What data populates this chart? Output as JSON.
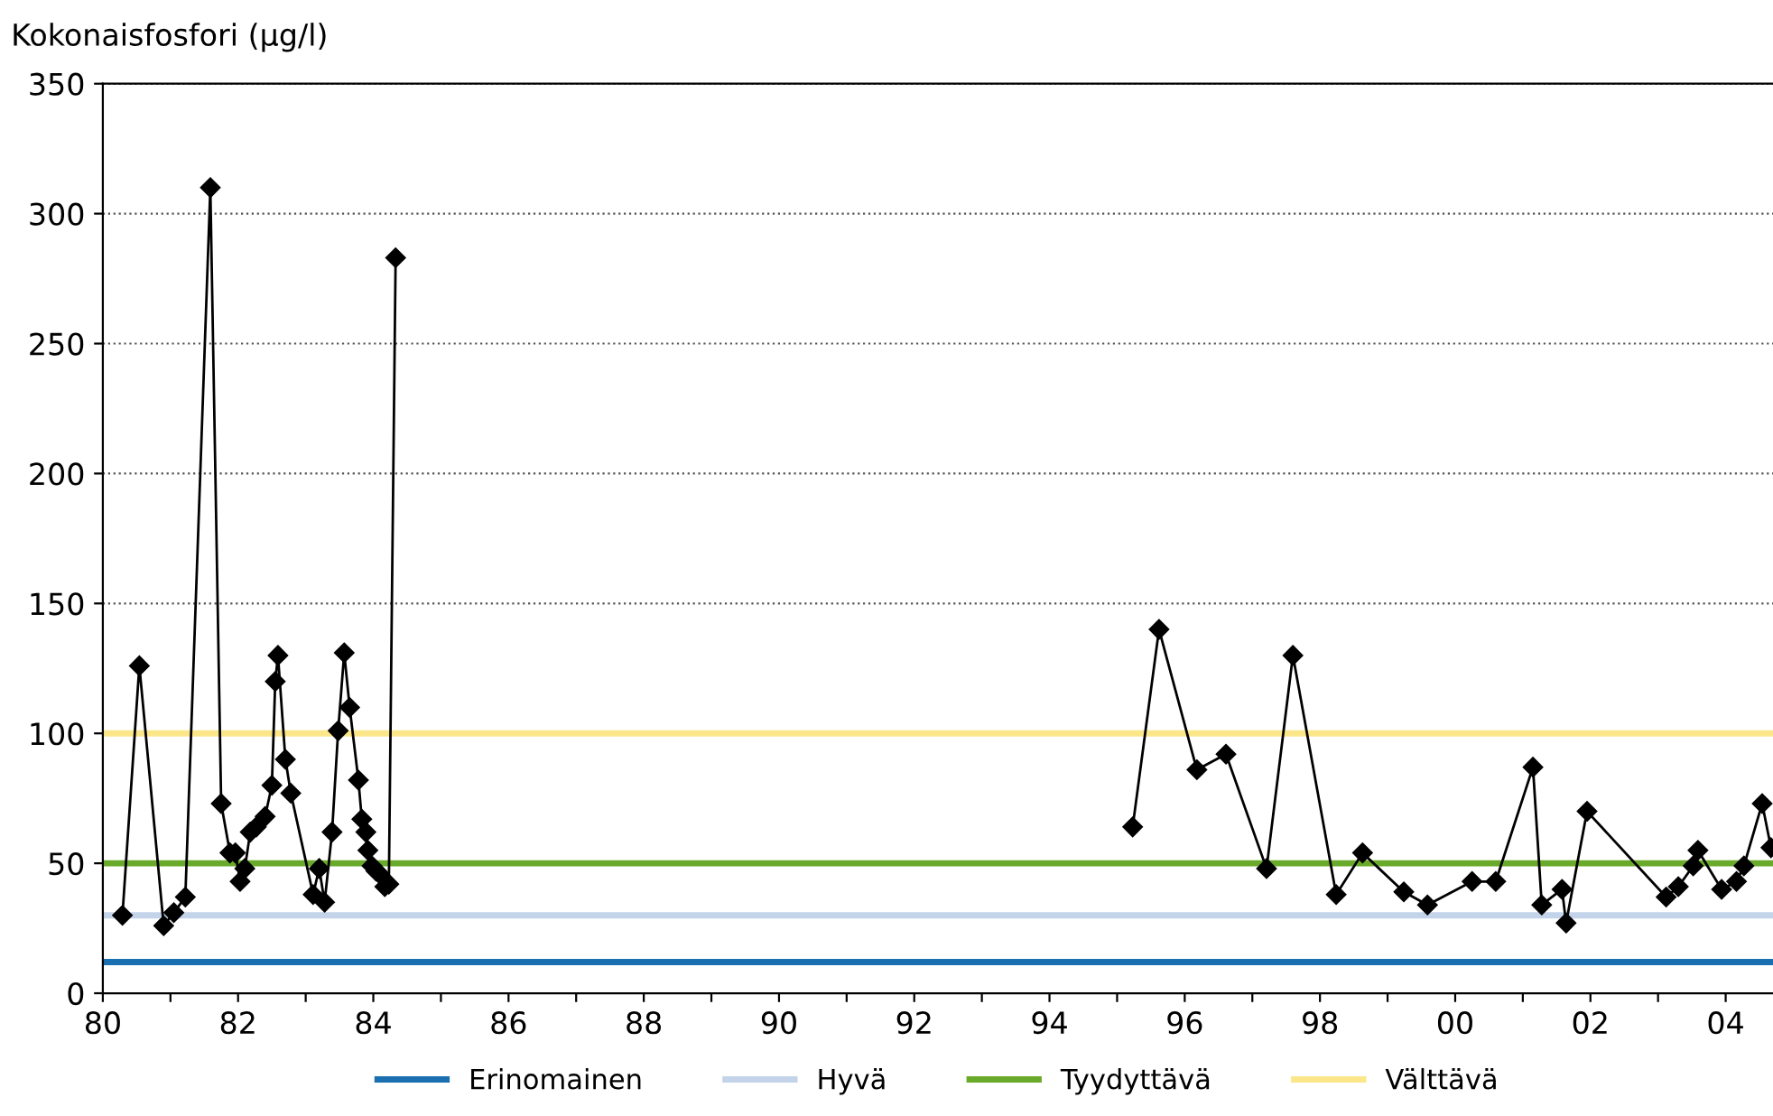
{
  "chart_data": {
    "type": "line",
    "ylabel": "Kokonaisfosfori (µg/l)",
    "x": [
      1980.29,
      1980.54,
      1980.9,
      1981.05,
      1981.22,
      1981.59,
      1981.75,
      1981.88,
      1981.96,
      1982.03,
      1982.1,
      1982.18,
      1982.27,
      1982.4,
      1982.5,
      1982.55,
      1982.59,
      1982.7,
      1982.78,
      1983.11,
      1983.2,
      1983.28,
      1983.39,
      1983.48,
      1983.57,
      1983.65,
      1983.78,
      1983.83,
      1983.89,
      1983.92,
      1983.98,
      1984.04,
      1984.09,
      1984.17,
      1984.23,
      1984.33,
      1990,
      1995.23,
      1995.62,
      1996.18,
      1996.61,
      1997.21,
      1997.6,
      1998.24,
      1998.63,
      1999.24,
      1999.59,
      2000.25,
      2000.6,
      2001.15,
      2001.28,
      2001.58,
      2001.64,
      2001.95,
      2003.12,
      2003.3,
      2003.52,
      2003.59,
      2003.94,
      2004.16,
      2004.27,
      2004.54,
      2004.67
    ],
    "series": [
      {
        "color": "#000000",
        "values": [
          30,
          126,
          26,
          31,
          37,
          310,
          73,
          54,
          54,
          43,
          48,
          62,
          64,
          68,
          80,
          120,
          130,
          90,
          77,
          38,
          48,
          35,
          62,
          101,
          131,
          110,
          82,
          67,
          62,
          55,
          49,
          47,
          46,
          41,
          42,
          283,
          null,
          64,
          140,
          86,
          92,
          48,
          130,
          38,
          54,
          39,
          34,
          43,
          43,
          87,
          34,
          40,
          27,
          70,
          37,
          41,
          49,
          55,
          40,
          43,
          49,
          73,
          56
        ]
      }
    ],
    "marker": "diamond",
    "line_style": "solid",
    "xlim": [
      1980,
      2004.7
    ],
    "xticks": [
      {
        "value": 1980,
        "label": "80"
      },
      {
        "value": 1981,
        "label": null
      },
      {
        "value": 1982,
        "label": "82"
      },
      {
        "value": 1983,
        "label": null
      },
      {
        "value": 1984,
        "label": "84"
      },
      {
        "value": 1985,
        "label": null
      },
      {
        "value": 1986,
        "label": "86"
      },
      {
        "value": 1987,
        "label": null
      },
      {
        "value": 1988,
        "label": "88"
      },
      {
        "value": 1989,
        "label": null
      },
      {
        "value": 1990,
        "label": "90"
      },
      {
        "value": 1991,
        "label": null
      },
      {
        "value": 1992,
        "label": "92"
      },
      {
        "value": 1993,
        "label": null
      },
      {
        "value": 1994,
        "label": "94"
      },
      {
        "value": 1995,
        "label": null
      },
      {
        "value": 1996,
        "label": "96"
      },
      {
        "value": 1997,
        "label": null
      },
      {
        "value": 1998,
        "label": "98"
      },
      {
        "value": 1999,
        "label": null
      },
      {
        "value": 2000,
        "label": "00"
      },
      {
        "value": 2001,
        "label": null
      },
      {
        "value": 2002,
        "label": "02"
      },
      {
        "value": 2003,
        "label": null
      },
      {
        "value": 2004,
        "label": "04"
      }
    ],
    "ylim": [
      0,
      350
    ],
    "yticks": [
      0,
      50,
      100,
      150,
      200,
      250,
      300,
      350
    ],
    "grid": "y",
    "legend": "bottom",
    "ref_lines": [
      {
        "axis": "y",
        "value": 12,
        "label": "Erinomainen",
        "color": "#1a6fb0"
      },
      {
        "axis": "y",
        "value": 30,
        "label": "Hyvä",
        "color": "#c3d4ea"
      },
      {
        "axis": "y",
        "value": 50,
        "label": "Tyydyttävä",
        "color": "#6aaa2a"
      },
      {
        "axis": "y",
        "value": 100,
        "label": "Välttävä",
        "color": "#fbe68a"
      }
    ]
  }
}
